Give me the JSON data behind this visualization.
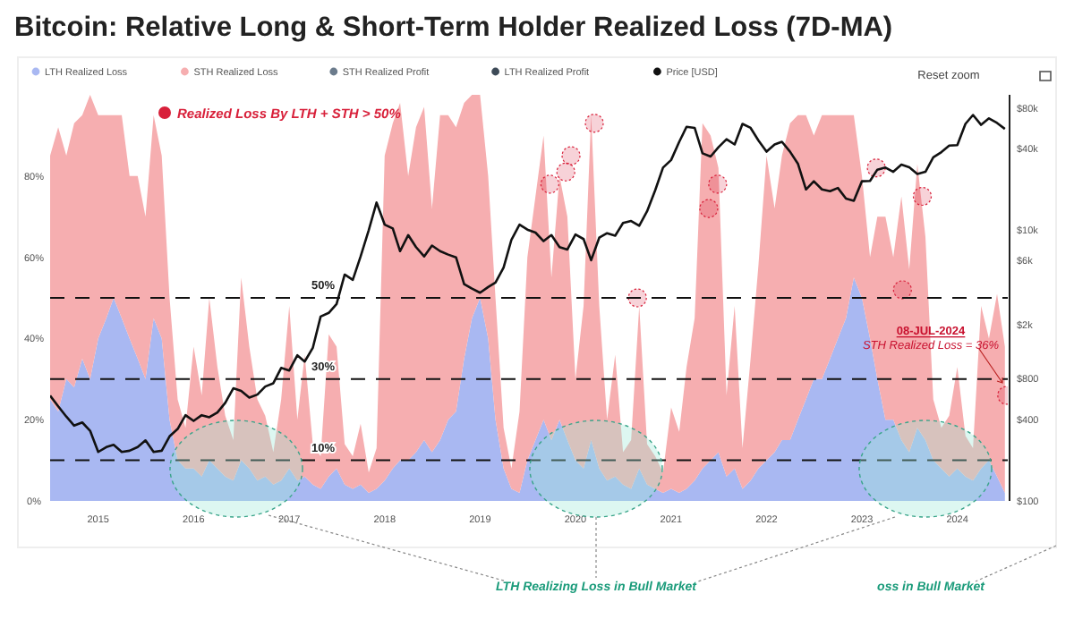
{
  "chart_data": {
    "type": "area",
    "stacked": true,
    "title": "Bitcoin: Relative Long & Short-Term Holder Realized Loss (7D-MA)",
    "x": [
      "2014-07",
      "2014-08",
      "2014-09",
      "2014-10",
      "2014-11",
      "2014-12",
      "2015-01",
      "2015-02",
      "2015-03",
      "2015-04",
      "2015-05",
      "2015-06",
      "2015-07",
      "2015-08",
      "2015-09",
      "2015-10",
      "2015-11",
      "2015-12",
      "2016-01",
      "2016-02",
      "2016-03",
      "2016-04",
      "2016-05",
      "2016-06",
      "2016-07",
      "2016-08",
      "2016-09",
      "2016-10",
      "2016-11",
      "2016-12",
      "2017-01",
      "2017-02",
      "2017-03",
      "2017-04",
      "2017-05",
      "2017-06",
      "2017-07",
      "2017-08",
      "2017-09",
      "2017-10",
      "2017-11",
      "2017-12",
      "2018-01",
      "2018-02",
      "2018-03",
      "2018-04",
      "2018-05",
      "2018-06",
      "2018-07",
      "2018-08",
      "2018-09",
      "2018-10",
      "2018-11",
      "2018-12",
      "2019-01",
      "2019-02",
      "2019-03",
      "2019-04",
      "2019-05",
      "2019-06",
      "2019-07",
      "2019-08",
      "2019-09",
      "2019-10",
      "2019-11",
      "2019-12",
      "2020-01",
      "2020-02",
      "2020-03",
      "2020-04",
      "2020-05",
      "2020-06",
      "2020-07",
      "2020-08",
      "2020-09",
      "2020-10",
      "2020-11",
      "2020-12",
      "2021-01",
      "2021-02",
      "2021-03",
      "2021-04",
      "2021-05",
      "2021-06",
      "2021-07",
      "2021-08",
      "2021-09",
      "2021-10",
      "2021-11",
      "2021-12",
      "2022-01",
      "2022-02",
      "2022-03",
      "2022-04",
      "2022-05",
      "2022-06",
      "2022-07",
      "2022-08",
      "2022-09",
      "2022-10",
      "2022-11",
      "2022-12",
      "2023-01",
      "2023-02",
      "2023-03",
      "2023-04",
      "2023-05",
      "2023-06",
      "2023-07",
      "2023-08",
      "2023-09",
      "2023-10",
      "2023-11",
      "2023-12",
      "2024-01",
      "2024-02",
      "2024-03",
      "2024-04",
      "2024-05",
      "2024-06",
      "2024-07"
    ],
    "series": [
      {
        "name": "LTH Realized Loss",
        "color": "#a9b8f2",
        "values": [
          25,
          22,
          30,
          28,
          35,
          30,
          40,
          45,
          50,
          45,
          40,
          35,
          30,
          45,
          40,
          20,
          10,
          8,
          8,
          6,
          10,
          8,
          6,
          5,
          10,
          8,
          5,
          6,
          4,
          5,
          8,
          5,
          6,
          4,
          3,
          6,
          8,
          4,
          3,
          4,
          2,
          3,
          5,
          8,
          10,
          10,
          12,
          15,
          12,
          15,
          20,
          22,
          35,
          45,
          50,
          40,
          20,
          8,
          3,
          2,
          10,
          15,
          20,
          15,
          20,
          15,
          10,
          8,
          15,
          8,
          5,
          6,
          4,
          3,
          8,
          4,
          3,
          2,
          3,
          2,
          3,
          5,
          8,
          10,
          12,
          6,
          8,
          3,
          5,
          8,
          10,
          12,
          15,
          15,
          20,
          25,
          30,
          30,
          35,
          40,
          45,
          55,
          50,
          40,
          30,
          20,
          20,
          15,
          12,
          18,
          15,
          10,
          8,
          6,
          8,
          6,
          5,
          8,
          10,
          6,
          2
        ]
      },
      {
        "name": "STH Realized Loss",
        "color": "#f6aeb0",
        "values": [
          60,
          70,
          55,
          65,
          60,
          70,
          55,
          50,
          45,
          50,
          40,
          45,
          40,
          50,
          45,
          30,
          15,
          10,
          30,
          20,
          40,
          25,
          15,
          10,
          45,
          30,
          20,
          15,
          8,
          20,
          40,
          15,
          30,
          10,
          8,
          35,
          30,
          10,
          8,
          15,
          5,
          10,
          80,
          85,
          88,
          70,
          80,
          82,
          60,
          80,
          75,
          70,
          63,
          55,
          50,
          40,
          30,
          10,
          5,
          20,
          50,
          60,
          70,
          40,
          60,
          55,
          20,
          40,
          80,
          40,
          15,
          30,
          8,
          12,
          40,
          10,
          8,
          5,
          20,
          15,
          30,
          40,
          85,
          80,
          70,
          20,
          40,
          10,
          30,
          50,
          75,
          60,
          70,
          78,
          75,
          70,
          60,
          65,
          60,
          55,
          50,
          40,
          30,
          20,
          40,
          50,
          40,
          60,
          45,
          65,
          50,
          15,
          10,
          15,
          25,
          10,
          8,
          40,
          30,
          45,
          36
        ]
      },
      {
        "name": "STH Realized Profit",
        "color": "#6b7b8c",
        "values": [
          null,
          null,
          null,
          null,
          null,
          null,
          null,
          null,
          null,
          null,
          null,
          null,
          null,
          null,
          null,
          null,
          null,
          null,
          null,
          null,
          null,
          null,
          null,
          null,
          null,
          null,
          null,
          null,
          null,
          null,
          null,
          null,
          null,
          null,
          null,
          null,
          null,
          null,
          null,
          null,
          null,
          null,
          null,
          null,
          null,
          null,
          null,
          null,
          null,
          null,
          null,
          null,
          null,
          null,
          null,
          null,
          null,
          null,
          null,
          null,
          null,
          null,
          null,
          null,
          null,
          null,
          null,
          null,
          null,
          null,
          null,
          null,
          null,
          null,
          null,
          null,
          null,
          null,
          null,
          null,
          null,
          null,
          null,
          null,
          null,
          null,
          null,
          null,
          null,
          null,
          null,
          null,
          null,
          null,
          null,
          null,
          null,
          null,
          null,
          null,
          null,
          null,
          null,
          null,
          null,
          null,
          null,
          null,
          null,
          null,
          null,
          null,
          null,
          null,
          null,
          null,
          null,
          null,
          null,
          null,
          null
        ]
      },
      {
        "name": "LTH Realized Profit",
        "color": "#3d4a57",
        "values": [
          null,
          null,
          null,
          null,
          null,
          null,
          null,
          null,
          null,
          null,
          null,
          null,
          null,
          null,
          null,
          null,
          null,
          null,
          null,
          null,
          null,
          null,
          null,
          null,
          null,
          null,
          null,
          null,
          null,
          null,
          null,
          null,
          null,
          null,
          null,
          null,
          null,
          null,
          null,
          null,
          null,
          null,
          null,
          null,
          null,
          null,
          null,
          null,
          null,
          null,
          null,
          null,
          null,
          null,
          null,
          null,
          null,
          null,
          null,
          null,
          null,
          null,
          null,
          null,
          null,
          null,
          null,
          null,
          null,
          null,
          null,
          null,
          null,
          null,
          null,
          null,
          null,
          null,
          null,
          null,
          null,
          null,
          null,
          null,
          null,
          null,
          null,
          null,
          null,
          null,
          null,
          null,
          null,
          null,
          null,
          null,
          null,
          null,
          null,
          null,
          null,
          null,
          null,
          null,
          null,
          null,
          null,
          null,
          null,
          null,
          null,
          null,
          null,
          null,
          null,
          null,
          null,
          null,
          null,
          null,
          null
        ]
      },
      {
        "name": "Realized Loss By LTH + STH > 50%",
        "type": "scatter",
        "marker": "circle",
        "color": "#d8203a",
        "x": [
          "2019-09-25",
          "2019-11-25",
          "2019-12-15",
          "2020-03-13",
          "2020-08-25",
          "2021-05-25",
          "2021-06-28",
          "2023-02-25",
          "2023-06-05",
          "2023-08-20",
          "2024-07-08"
        ],
        "values": [
          78,
          81,
          85,
          93,
          50,
          72,
          78,
          82,
          52,
          75,
          26
        ]
      },
      {
        "name": "Price [USD]",
        "type": "line",
        "axis": "y2",
        "color": "#111111",
        "values": [
          600,
          500,
          420,
          360,
          380,
          330,
          230,
          250,
          260,
          230,
          235,
          250,
          280,
          230,
          235,
          300,
          340,
          430,
          390,
          430,
          415,
          450,
          530,
          680,
          650,
          580,
          610,
          700,
          740,
          960,
          920,
          1190,
          1070,
          1350,
          2300,
          2450,
          2850,
          4700,
          4300,
          6400,
          10000,
          16000,
          11000,
          10300,
          7000,
          9200,
          7500,
          6400,
          7700,
          7000,
          6600,
          6300,
          4000,
          3700,
          3450,
          3800,
          4100,
          5300,
          8500,
          11000,
          10100,
          9600,
          8300,
          9200,
          7500,
          7200,
          9300,
          8600,
          6000,
          8800,
          9500,
          9100,
          11300,
          11700,
          10800,
          13800,
          19700,
          29000,
          33000,
          45000,
          58000,
          57000,
          37000,
          35000,
          41000,
          47000,
          43000,
          61000,
          57000,
          46000,
          38000,
          43000,
          45000,
          38000,
          31000,
          20000,
          23000,
          20000,
          19400,
          20500,
          17100,
          16500,
          23000,
          23100,
          28000,
          29000,
          27000,
          30500,
          29200,
          26000,
          27000,
          34500,
          37700,
          42200,
          42500,
          61000,
          71000,
          60000,
          67000,
          62000,
          56000
        ]
      }
    ],
    "xlim": [
      "2014-07",
      "2024-07-12"
    ],
    "xticks": [
      "2015",
      "2016",
      "2017",
      "2018",
      "2019",
      "2020",
      "2021",
      "2022",
      "2023",
      "2024"
    ],
    "ylim": [
      0,
      100
    ],
    "yticks": [
      {
        "value": 0,
        "label": "0%"
      },
      {
        "value": 20,
        "label": "20%"
      },
      {
        "value": 40,
        "label": "40%"
      },
      {
        "value": 60,
        "label": "60%"
      },
      {
        "value": 80,
        "label": "80%"
      }
    ],
    "log": "y2",
    "y2lim": [
      100,
      100000
    ],
    "y2ticks": [
      {
        "value": 100,
        "label": "$100"
      },
      {
        "value": 400,
        "label": "$400"
      },
      {
        "value": 800,
        "label": "$800"
      },
      {
        "value": 2000,
        "label": "$2k"
      },
      {
        "value": 6000,
        "label": "$6k"
      },
      {
        "value": 10000,
        "label": "$10k"
      },
      {
        "value": 40000,
        "label": "$40k"
      },
      {
        "value": 80000,
        "label": "$80k"
      }
    ],
    "ref_lines": [
      {
        "axis": "y",
        "value": 50,
        "label": "50%",
        "color": "#111111",
        "line_style": "dashed"
      },
      {
        "axis": "y",
        "value": 30,
        "label": "30%",
        "color": "#111111",
        "line_style": "dashed"
      },
      {
        "axis": "y",
        "value": 10,
        "label": "10%",
        "color": "#111111",
        "line_style": "dashed"
      }
    ],
    "annotations": [
      null,
      "08-JUL-2024",
      "STH Realized Loss = 36%",
      "LTH Realizing Loss in Bull Market",
      "oss in Bull Market",
      "Reset zoom"
    ],
    "legend": "top left",
    "grid": false
  }
}
